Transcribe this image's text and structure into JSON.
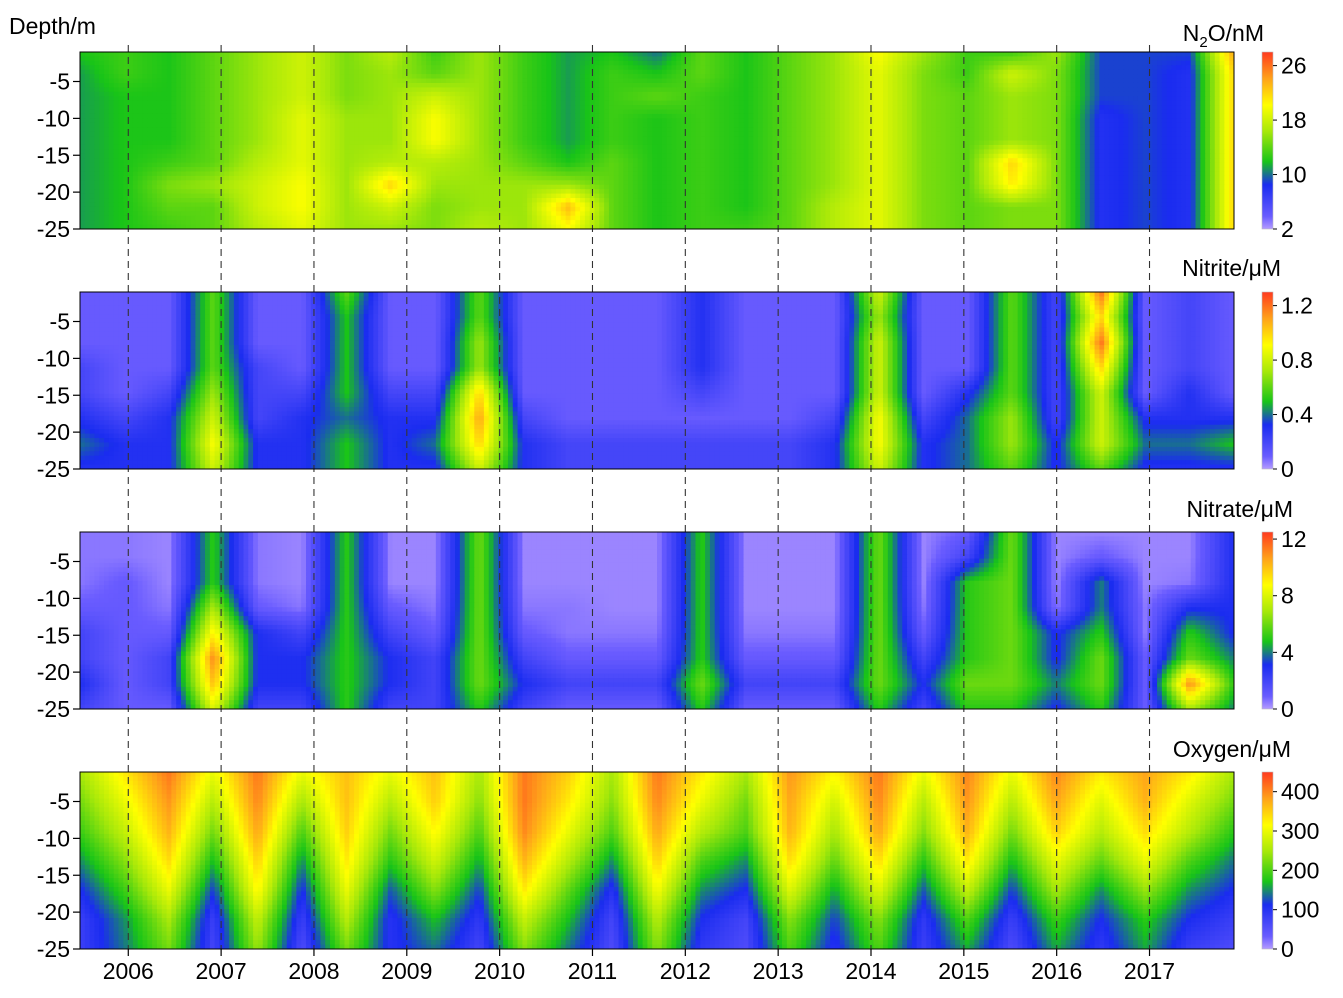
{
  "figure": {
    "depth_label": "Depth/m",
    "years": [
      "2006",
      "2007",
      "2008",
      "2009",
      "2010",
      "2011",
      "2012",
      "2013",
      "2014",
      "2015",
      "2016",
      "2017"
    ],
    "year_start": 2005.48,
    "year_end": 2017.91
  },
  "chart_data": [
    {
      "type": "heatmap",
      "title": "N₂O/nM",
      "title_parts": {
        "base": "N",
        "sub": "2",
        "rest": "O/nM"
      },
      "ylabel": "Depth/m",
      "yticks": [
        "-5",
        "-10",
        "-15",
        "-20",
        "-25"
      ],
      "ylim": [
        -25,
        -1
      ],
      "xlim": [
        2005.48,
        2017.91
      ],
      "colorbar_ticks": [
        "2",
        "10",
        "18",
        "26"
      ],
      "colorbar_range": [
        2,
        28
      ],
      "grid": false,
      "rows": [
        [
          12,
          13,
          12,
          14,
          16,
          18,
          15,
          17,
          13,
          16,
          13,
          11,
          12,
          10,
          14,
          12,
          14,
          16,
          20,
          16,
          13,
          13,
          16,
          9,
          9,
          9,
          24
        ],
        [
          11,
          13,
          12,
          14,
          16,
          18,
          15,
          16,
          14,
          16,
          13,
          11,
          13,
          12,
          14,
          12,
          14,
          16,
          19,
          15,
          13,
          18,
          15,
          9,
          9,
          8,
          22
        ],
        [
          11,
          12,
          12,
          14,
          16,
          18,
          15,
          16,
          18,
          16,
          13,
          11,
          13,
          14,
          13,
          12,
          14,
          16,
          19,
          15,
          14,
          16,
          15,
          9,
          9,
          8,
          22
        ],
        [
          11,
          12,
          12,
          14,
          16,
          19,
          16,
          16,
          20,
          16,
          13,
          11,
          13,
          12,
          13,
          12,
          14,
          16,
          19,
          15,
          14,
          16,
          15,
          8,
          9,
          8,
          22
        ],
        [
          11,
          12,
          12,
          14,
          16,
          19,
          16,
          16,
          20,
          16,
          13,
          11,
          13,
          12,
          13,
          12,
          14,
          16,
          19,
          15,
          14,
          16,
          15,
          8,
          9,
          8,
          22
        ],
        [
          11,
          12,
          13,
          14,
          17,
          19,
          16,
          17,
          17,
          16,
          14,
          12,
          14,
          12,
          13,
          12,
          14,
          16,
          19,
          15,
          14,
          22,
          15,
          8,
          9,
          8,
          22
        ],
        [
          11,
          12,
          15,
          16,
          18,
          20,
          16,
          22,
          16,
          16,
          16,
          16,
          14,
          12,
          13,
          12,
          14,
          16,
          19,
          15,
          14,
          21,
          15,
          8,
          9,
          8,
          22
        ],
        [
          11,
          12,
          14,
          14,
          18,
          20,
          16,
          18,
          15,
          16,
          16,
          23,
          14,
          12,
          13,
          12,
          14,
          17,
          19,
          15,
          14,
          15,
          15,
          8,
          9,
          8,
          22
        ],
        [
          11,
          12,
          13,
          14,
          17,
          19,
          16,
          16,
          15,
          17,
          16,
          20,
          14,
          12,
          13,
          13,
          14,
          17,
          19,
          15,
          14,
          15,
          15,
          8,
          9,
          8,
          22
        ]
      ]
    },
    {
      "type": "heatmap",
      "title": "Nitrite/μM",
      "ylabel": "Depth/m",
      "yticks": [
        "-5",
        "-10",
        "-15",
        "-20",
        "-25"
      ],
      "ylim": [
        -25,
        -1
      ],
      "xlim": [
        2005.48,
        2017.91
      ],
      "colorbar_ticks": [
        "0",
        "0.4",
        "0.8",
        "1.2"
      ],
      "colorbar_range": [
        0,
        1.3
      ],
      "grid": false,
      "rows": [
        [
          0.1,
          0.1,
          0.1,
          0.6,
          0.1,
          0.1,
          0.6,
          0.1,
          0.1,
          0.6,
          0.1,
          0.1,
          0.1,
          0.1,
          0.3,
          0.1,
          0.1,
          0.1,
          0.8,
          0.1,
          0.1,
          0.6,
          0.2,
          1.2,
          0.1,
          0.2,
          0.1
        ],
        [
          0.1,
          0.1,
          0.1,
          0.6,
          0.1,
          0.1,
          0.5,
          0.1,
          0.1,
          0.6,
          0.1,
          0.1,
          0.1,
          0.1,
          0.3,
          0.1,
          0.1,
          0.1,
          0.7,
          0.1,
          0.1,
          0.6,
          0.2,
          1.0,
          0.1,
          0.2,
          0.1
        ],
        [
          0.1,
          0.1,
          0.1,
          0.6,
          0.1,
          0.1,
          0.5,
          0.1,
          0.1,
          0.7,
          0.1,
          0.1,
          0.1,
          0.1,
          0.3,
          0.1,
          0.1,
          0.1,
          0.8,
          0.1,
          0.1,
          0.6,
          0.2,
          1.2,
          0.1,
          0.2,
          0.1
        ],
        [
          0.2,
          0.1,
          0.1,
          0.6,
          0.2,
          0.1,
          0.5,
          0.1,
          0.1,
          0.7,
          0.1,
          0.1,
          0.1,
          0.1,
          0.3,
          0.1,
          0.1,
          0.1,
          0.8,
          0.1,
          0.1,
          0.6,
          0.2,
          1.0,
          0.1,
          0.2,
          0.1
        ],
        [
          0.2,
          0.1,
          0.2,
          0.7,
          0.2,
          0.2,
          0.5,
          0.2,
          0.2,
          1.0,
          0.1,
          0.1,
          0.1,
          0.1,
          0.2,
          0.1,
          0.1,
          0.1,
          0.8,
          0.1,
          0.3,
          0.6,
          0.2,
          0.8,
          0.1,
          0.3,
          0.1
        ],
        [
          0.3,
          0.2,
          0.3,
          0.8,
          0.2,
          0.3,
          0.4,
          0.3,
          0.3,
          1.1,
          0.2,
          0.1,
          0.1,
          0.1,
          0.1,
          0.1,
          0.1,
          0.2,
          0.9,
          0.2,
          0.4,
          0.7,
          0.2,
          0.8,
          0.3,
          0.3,
          0.3
        ],
        [
          0.4,
          0.3,
          0.3,
          0.9,
          0.3,
          0.3,
          0.5,
          0.3,
          0.4,
          1.0,
          0.3,
          0.2,
          0.2,
          0.2,
          0.2,
          0.2,
          0.2,
          0.3,
          0.9,
          0.3,
          0.4,
          0.7,
          0.3,
          0.8,
          0.4,
          0.4,
          0.5
        ],
        [
          0.3,
          0.3,
          0.3,
          0.8,
          0.3,
          0.3,
          0.5,
          0.3,
          0.3,
          0.8,
          0.3,
          0.2,
          0.2,
          0.2,
          0.2,
          0.2,
          0.2,
          0.3,
          0.8,
          0.3,
          0.4,
          0.6,
          0.3,
          0.6,
          0.3,
          0.3,
          0.3
        ]
      ]
    },
    {
      "type": "heatmap",
      "title": "Nitrate/μM",
      "ylabel": "Depth/m",
      "yticks": [
        "-5",
        "-10",
        "-15",
        "-20",
        "-25"
      ],
      "ylim": [
        -25,
        -1
      ],
      "xlim": [
        2005.48,
        2017.91
      ],
      "colorbar_ticks": [
        "0",
        "4",
        "8",
        "12"
      ],
      "colorbar_range": [
        0,
        12.5
      ],
      "grid": false,
      "rows": [
        [
          0.5,
          0.5,
          0.3,
          5,
          0.5,
          0.3,
          5,
          0.3,
          0.3,
          6,
          0.3,
          0.3,
          0.3,
          0.3,
          5,
          0.3,
          0.3,
          0.3,
          6,
          0.3,
          1,
          6,
          0.3,
          0.3,
          0.3,
          0.3,
          3
        ],
        [
          0.5,
          0.5,
          0.3,
          5,
          0.5,
          0.3,
          5,
          0.3,
          0.3,
          6,
          0.3,
          0.3,
          0.3,
          0.3,
          5,
          0.3,
          0.3,
          0.3,
          6,
          0.3,
          2,
          6,
          0.3,
          1,
          0.3,
          0.3,
          3
        ],
        [
          0.5,
          1,
          0.3,
          5,
          0.5,
          0.3,
          5,
          0.3,
          0.3,
          6,
          0.3,
          0.3,
          0.3,
          0.3,
          5,
          0.3,
          0.3,
          0.3,
          6,
          0.3,
          5,
          6,
          0.3,
          4,
          0.3,
          0.5,
          3
        ],
        [
          1,
          1,
          0.5,
          7,
          1,
          0.5,
          5,
          1,
          0.5,
          6,
          0.5,
          0.5,
          0.3,
          0.3,
          5,
          0.3,
          0.3,
          0.3,
          6,
          0.5,
          5,
          6,
          0.5,
          4,
          0.5,
          3,
          3
        ],
        [
          2,
          1,
          1,
          9,
          3,
          2,
          5,
          2,
          1,
          6,
          1,
          0.5,
          0.5,
          0.5,
          5,
          0.5,
          0.5,
          0.5,
          6,
          1,
          5,
          6,
          3,
          5,
          0.5,
          5,
          3
        ],
        [
          2,
          1,
          2,
          11,
          3,
          3,
          5,
          3,
          2,
          6,
          2,
          1,
          1,
          1,
          5,
          1,
          1,
          1,
          6,
          2,
          5,
          6,
          3,
          6,
          1,
          6,
          4
        ],
        [
          3,
          1,
          2,
          10,
          3,
          3,
          5,
          3,
          2,
          6,
          3,
          2,
          2,
          2,
          6,
          2,
          2,
          2,
          6,
          3,
          6,
          6,
          4,
          6,
          1,
          11,
          5
        ],
        [
          2,
          1,
          1,
          8,
          2,
          2,
          5,
          2,
          2,
          5,
          2,
          1,
          1,
          1,
          5,
          1,
          1,
          1,
          5,
          2,
          5,
          5,
          3,
          5,
          1,
          7,
          4
        ]
      ]
    },
    {
      "type": "heatmap",
      "title": "Oxygen/μM",
      "ylabel": "Depth/m",
      "yticks": [
        "-5",
        "-10",
        "-15",
        "-20",
        "-25"
      ],
      "ylim": [
        -25,
        -1
      ],
      "xlim": [
        2005.48,
        2017.91
      ],
      "colorbar_ticks": [
        "0",
        "100",
        "200",
        "300",
        "400"
      ],
      "colorbar_range": [
        0,
        450
      ],
      "grid": false,
      "rows": [
        [
          250,
          330,
          410,
          300,
          410,
          300,
          360,
          300,
          360,
          250,
          410,
          350,
          250,
          410,
          330,
          250,
          390,
          320,
          410,
          300,
          400,
          300,
          400,
          330,
          380,
          330,
          250
        ],
        [
          220,
          300,
          390,
          260,
          400,
          250,
          360,
          260,
          350,
          230,
          410,
          330,
          230,
          400,
          300,
          220,
          380,
          280,
          400,
          260,
          390,
          260,
          380,
          290,
          370,
          290,
          220
        ],
        [
          190,
          270,
          370,
          220,
          380,
          200,
          350,
          220,
          320,
          200,
          400,
          300,
          200,
          380,
          260,
          200,
          370,
          250,
          380,
          230,
          370,
          220,
          350,
          260,
          340,
          260,
          180
        ],
        [
          150,
          230,
          340,
          170,
          350,
          150,
          330,
          180,
          280,
          160,
          370,
          260,
          150,
          350,
          200,
          150,
          340,
          210,
          340,
          180,
          330,
          170,
          300,
          210,
          300,
          200,
          140
        ],
        [
          110,
          190,
          300,
          120,
          320,
          110,
          300,
          130,
          230,
          120,
          330,
          210,
          100,
          310,
          150,
          110,
          290,
          160,
          290,
          130,
          270,
          120,
          250,
          150,
          240,
          150,
          110
        ],
        [
          80,
          150,
          250,
          80,
          270,
          80,
          260,
          100,
          170,
          90,
          270,
          170,
          70,
          260,
          110,
          70,
          230,
          120,
          230,
          90,
          200,
          80,
          190,
          110,
          180,
          110,
          80
        ],
        [
          80,
          140,
          220,
          70,
          240,
          60,
          220,
          100,
          140,
          70,
          230,
          140,
          60,
          230,
          90,
          60,
          200,
          100,
          200,
          80,
          160,
          60,
          160,
          90,
          160,
          80,
          60
        ]
      ]
    }
  ]
}
